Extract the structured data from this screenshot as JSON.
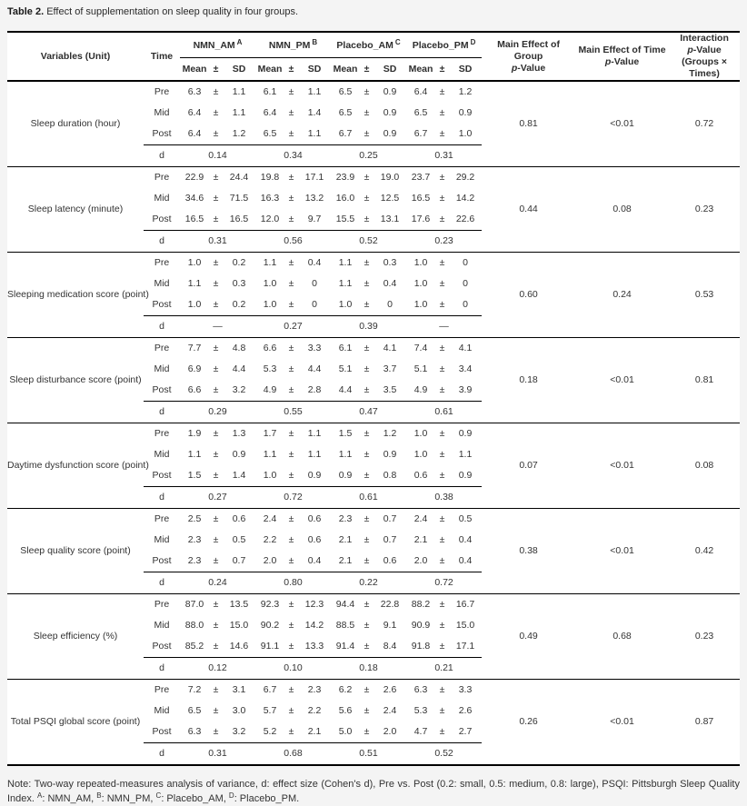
{
  "title": {
    "label": "Table 2.",
    "text": "Effect of supplementation on sleep quality in four groups."
  },
  "table": {
    "header": {
      "variables": "Variables (Unit)",
      "time": "Time",
      "groups": [
        {
          "name": "NMN_AM",
          "sup": "A"
        },
        {
          "name": "NMN_PM",
          "sup": "B"
        },
        {
          "name": "Placebo_AM",
          "sup": "C"
        },
        {
          "name": "Placebo_PM",
          "sup": "D"
        }
      ],
      "stat_cols": [
        "Mean",
        "±",
        "SD"
      ],
      "p_group": {
        "line1": "Main Effect of Group",
        "line2": "p-Value"
      },
      "p_time": {
        "line1": "Main Effect of Time",
        "line2": "p-Value"
      },
      "p_interaction": {
        "line1": "Interaction",
        "line2": "p-Value",
        "line3": "(Groups × Times)"
      }
    },
    "time_labels": [
      "Pre",
      "Mid",
      "Post"
    ],
    "d_label": "d",
    "plus_minus": "±",
    "blocks": [
      {
        "variable": "Sleep duration (hour)",
        "pre": [
          [
            "6.3",
            "1.1"
          ],
          [
            "6.1",
            "1.1"
          ],
          [
            "6.5",
            "0.9"
          ],
          [
            "6.4",
            "1.2"
          ]
        ],
        "mid": [
          [
            "6.4",
            "1.1"
          ],
          [
            "6.4",
            "1.4"
          ],
          [
            "6.5",
            "0.9"
          ],
          [
            "6.5",
            "0.9"
          ]
        ],
        "post": [
          [
            "6.4",
            "1.2"
          ],
          [
            "6.5",
            "1.1"
          ],
          [
            "6.7",
            "0.9"
          ],
          [
            "6.7",
            "1.0"
          ]
        ],
        "d": [
          "0.14",
          "0.34",
          "0.25",
          "0.31"
        ],
        "p_group": "0.81",
        "p_time": "<0.01",
        "p_interaction": "0.72"
      },
      {
        "variable": "Sleep latency (minute)",
        "pre": [
          [
            "22.9",
            "24.4"
          ],
          [
            "19.8",
            "17.1"
          ],
          [
            "23.9",
            "19.0"
          ],
          [
            "23.7",
            "29.2"
          ]
        ],
        "mid": [
          [
            "34.6",
            "71.5"
          ],
          [
            "16.3",
            "13.2"
          ],
          [
            "16.0",
            "12.5"
          ],
          [
            "16.5",
            "14.2"
          ]
        ],
        "post": [
          [
            "16.5",
            "16.5"
          ],
          [
            "12.0",
            "9.7"
          ],
          [
            "15.5",
            "13.1"
          ],
          [
            "17.6",
            "22.6"
          ]
        ],
        "d": [
          "0.31",
          "0.56",
          "0.52",
          "0.23"
        ],
        "p_group": "0.44",
        "p_time": "0.08",
        "p_interaction": "0.23"
      },
      {
        "variable": "Sleeping medication score (point)",
        "pre": [
          [
            "1.0",
            "0.2"
          ],
          [
            "1.1",
            "0.4"
          ],
          [
            "1.1",
            "0.3"
          ],
          [
            "1.0",
            "0"
          ]
        ],
        "mid": [
          [
            "1.1",
            "0.3"
          ],
          [
            "1.0",
            "0"
          ],
          [
            "1.1",
            "0.4"
          ],
          [
            "1.0",
            "0"
          ]
        ],
        "post": [
          [
            "1.0",
            "0.2"
          ],
          [
            "1.0",
            "0"
          ],
          [
            "1.0",
            "0"
          ],
          [
            "1.0",
            "0"
          ]
        ],
        "d": [
          "—",
          "0.27",
          "0.39",
          "—"
        ],
        "p_group": "0.60",
        "p_time": "0.24",
        "p_interaction": "0.53"
      },
      {
        "variable": "Sleep disturbance score (point)",
        "pre": [
          [
            "7.7",
            "4.8"
          ],
          [
            "6.6",
            "3.3"
          ],
          [
            "6.1",
            "4.1"
          ],
          [
            "7.4",
            "4.1"
          ]
        ],
        "mid": [
          [
            "6.9",
            "4.4"
          ],
          [
            "5.3",
            "4.4"
          ],
          [
            "5.1",
            "3.7"
          ],
          [
            "5.1",
            "3.4"
          ]
        ],
        "post": [
          [
            "6.6",
            "3.2"
          ],
          [
            "4.9",
            "2.8"
          ],
          [
            "4.4",
            "3.5"
          ],
          [
            "4.9",
            "3.9"
          ]
        ],
        "d": [
          "0.29",
          "0.55",
          "0.47",
          "0.61"
        ],
        "p_group": "0.18",
        "p_time": "<0.01",
        "p_interaction": "0.81"
      },
      {
        "variable": "Daytime dysfunction score (point)",
        "pre": [
          [
            "1.9",
            "1.3"
          ],
          [
            "1.7",
            "1.1"
          ],
          [
            "1.5",
            "1.2"
          ],
          [
            "1.0",
            "0.9"
          ]
        ],
        "mid": [
          [
            "1.1",
            "0.9"
          ],
          [
            "1.1",
            "1.1"
          ],
          [
            "1.1",
            "0.9"
          ],
          [
            "1.0",
            "1.1"
          ]
        ],
        "post": [
          [
            "1.5",
            "1.4"
          ],
          [
            "1.0",
            "0.9"
          ],
          [
            "0.9",
            "0.8"
          ],
          [
            "0.6",
            "0.9"
          ]
        ],
        "d": [
          "0.27",
          "0.72",
          "0.61",
          "0.38"
        ],
        "p_group": "0.07",
        "p_time": "<0.01",
        "p_interaction": "0.08"
      },
      {
        "variable": "Sleep quality score (point)",
        "pre": [
          [
            "2.5",
            "0.6"
          ],
          [
            "2.4",
            "0.6"
          ],
          [
            "2.3",
            "0.7"
          ],
          [
            "2.4",
            "0.5"
          ]
        ],
        "mid": [
          [
            "2.3",
            "0.5"
          ],
          [
            "2.2",
            "0.6"
          ],
          [
            "2.1",
            "0.7"
          ],
          [
            "2.1",
            "0.4"
          ]
        ],
        "post": [
          [
            "2.3",
            "0.7"
          ],
          [
            "2.0",
            "0.4"
          ],
          [
            "2.1",
            "0.6"
          ],
          [
            "2.0",
            "0.4"
          ]
        ],
        "d": [
          "0.24",
          "0.80",
          "0.22",
          "0.72"
        ],
        "p_group": "0.38",
        "p_time": "<0.01",
        "p_interaction": "0.42"
      },
      {
        "variable": "Sleep efficiency (%)",
        "pre": [
          [
            "87.0",
            "13.5"
          ],
          [
            "92.3",
            "12.3"
          ],
          [
            "94.4",
            "22.8"
          ],
          [
            "88.2",
            "16.7"
          ]
        ],
        "mid": [
          [
            "88.0",
            "15.0"
          ],
          [
            "90.2",
            "14.2"
          ],
          [
            "88.5",
            "9.1"
          ],
          [
            "90.9",
            "15.0"
          ]
        ],
        "post": [
          [
            "85.2",
            "14.6"
          ],
          [
            "91.1",
            "13.3"
          ],
          [
            "91.4",
            "8.4"
          ],
          [
            "91.8",
            "17.1"
          ]
        ],
        "d": [
          "0.12",
          "0.10",
          "0.18",
          "0.21"
        ],
        "p_group": "0.49",
        "p_time": "0.68",
        "p_interaction": "0.23"
      },
      {
        "variable": "Total PSQI global score (point)",
        "pre": [
          [
            "7.2",
            "3.1"
          ],
          [
            "6.7",
            "2.3"
          ],
          [
            "6.2",
            "2.6"
          ],
          [
            "6.3",
            "3.3"
          ]
        ],
        "mid": [
          [
            "6.5",
            "3.0"
          ],
          [
            "5.7",
            "2.2"
          ],
          [
            "5.6",
            "2.4"
          ],
          [
            "5.3",
            "2.6"
          ]
        ],
        "post": [
          [
            "6.3",
            "3.2"
          ],
          [
            "5.2",
            "2.1"
          ],
          [
            "5.0",
            "2.0"
          ],
          [
            "4.7",
            "2.7"
          ]
        ],
        "d": [
          "0.31",
          "0.68",
          "0.51",
          "0.52"
        ],
        "p_group": "0.26",
        "p_time": "<0.01",
        "p_interaction": "0.87"
      }
    ]
  },
  "note": {
    "body": "Note: Two-way repeated-measures analysis of variance, d: effect size (Cohen's d), Pre vs. Post (0.2: small, 0.5: medium, 0.8: large), PSQI: Pittsburgh Sleep Quality Index.",
    "legend": [
      {
        "sup": "A",
        "label": "NMN_AM"
      },
      {
        "sup": "B",
        "label": "NMN_PM"
      },
      {
        "sup": "C",
        "label": "Placebo_AM"
      },
      {
        "sup": "D",
        "label": "Placebo_PM"
      }
    ],
    "separator": ", ",
    "terminator": "."
  }
}
